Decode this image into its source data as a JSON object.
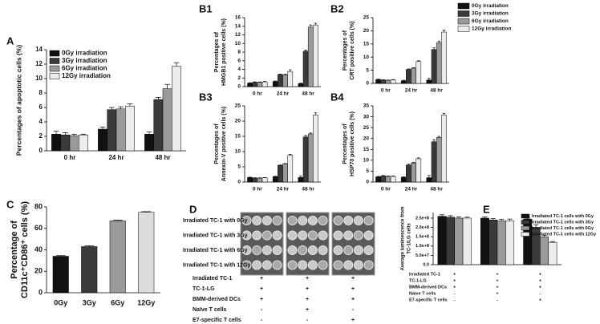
{
  "chart_data": [
    {
      "type": "bar",
      "label": "A",
      "ylabel": "Percentages of apoptotic cells (%)",
      "categories": [
        "0 hr",
        "24 hr",
        "48 hr"
      ],
      "series": [
        {
          "name": "0Gy irradiation",
          "color": "#111111",
          "values": [
            2.3,
            3.0,
            2.3
          ],
          "errors": [
            0.4,
            0.3,
            0.3
          ]
        },
        {
          "name": "3Gy irradiation",
          "color": "#3a3a3a",
          "values": [
            2.2,
            5.7,
            7.1
          ],
          "errors": [
            0.3,
            0.3,
            0.3
          ]
        },
        {
          "name": "6Gy irradiation",
          "color": "#9a9a9a",
          "values": [
            2.1,
            5.8,
            8.6
          ],
          "errors": [
            0.2,
            0.3,
            0.6
          ]
        },
        {
          "name": "12Gy irradiation",
          "color": "#ececec",
          "values": [
            2.2,
            6.2,
            11.7
          ],
          "errors": [
            0.1,
            0.3,
            0.5
          ]
        }
      ],
      "ylim": [
        0,
        14
      ],
      "yticks": [
        0,
        2,
        4,
        6,
        8,
        10,
        12,
        14
      ],
      "legend": "top-left"
    },
    {
      "type": "bar",
      "label": "B1",
      "ylabel": [
        "Percentages of",
        "HMGB1 positive cells (%)"
      ],
      "categories": [
        "0 hr",
        "24 hr",
        "48 hr"
      ],
      "series": [
        {
          "color": "#111111",
          "values": [
            0.8,
            1.2,
            0.7
          ],
          "errors": [
            0.1,
            0.1,
            0.1
          ]
        },
        {
          "color": "#3a3a3a",
          "values": [
            1.0,
            2.8,
            8.2
          ],
          "errors": [
            0.1,
            0.1,
            0.3
          ]
        },
        {
          "color": "#9a9a9a",
          "values": [
            1.0,
            2.7,
            13.8
          ],
          "errors": [
            0.1,
            0.2,
            0.5
          ]
        },
        {
          "color": "#ececec",
          "values": [
            1.1,
            3.5,
            14.3
          ],
          "errors": [
            0.1,
            0.4,
            0.4
          ]
        }
      ],
      "ylim": [
        0,
        16
      ],
      "yticks": [
        0,
        2,
        4,
        6,
        8,
        10,
        12,
        14,
        16
      ]
    },
    {
      "type": "bar",
      "label": "B2",
      "ylabel": [
        "Percentages of",
        "CRT positive cells (%)"
      ],
      "categories": [
        "0 hr",
        "24 hr",
        "48 hr"
      ],
      "series": [
        {
          "name": "0Gy irradiation",
          "color": "#111111",
          "values": [
            1.5,
            1.0,
            1.3
          ],
          "errors": [
            0.1,
            0.2,
            0.6
          ]
        },
        {
          "name": "3Gy irradiation",
          "color": "#3a3a3a",
          "values": [
            1.3,
            5.3,
            12.9
          ],
          "errors": [
            0.1,
            0.2,
            0.6
          ]
        },
        {
          "name": "6Gy irradiation",
          "color": "#9a9a9a",
          "values": [
            1.2,
            5.8,
            15.5
          ],
          "errors": [
            0.1,
            0.2,
            0.6
          ]
        },
        {
          "name": "12Gy irradiation",
          "color": "#ececec",
          "values": [
            1.3,
            8.3,
            19.5
          ],
          "errors": [
            0.1,
            0.3,
            0.8
          ]
        }
      ],
      "ylim": [
        0,
        25
      ],
      "yticks": [
        0,
        5,
        10,
        15,
        20,
        25
      ],
      "legend": "top-right"
    },
    {
      "type": "bar",
      "label": "B3",
      "ylabel": [
        "Percentages of",
        "Annexin-V positive cells (%)"
      ],
      "categories": [
        "0 hr",
        "24 hr",
        "48 hr"
      ],
      "series": [
        {
          "color": "#111111",
          "values": [
            1.5,
            1.8,
            1.5
          ],
          "errors": [
            0.1,
            0.1,
            0.5
          ]
        },
        {
          "color": "#3a3a3a",
          "values": [
            1.3,
            5.5,
            14.8
          ],
          "errors": [
            0.1,
            0.1,
            0.5
          ]
        },
        {
          "color": "#9a9a9a",
          "values": [
            1.3,
            6.0,
            15.8
          ],
          "errors": [
            0.1,
            0.1,
            0.3
          ]
        },
        {
          "color": "#ececec",
          "values": [
            1.4,
            8.8,
            22.0
          ],
          "errors": [
            0.1,
            0.3,
            0.7
          ]
        }
      ],
      "ylim": [
        0,
        25
      ],
      "yticks": [
        0,
        5,
        10,
        15,
        20,
        25
      ]
    },
    {
      "type": "bar",
      "label": "B4",
      "ylabel": [
        "Percentages of",
        "HSP70 positive cells (%)"
      ],
      "categories": [
        "0 hr",
        "24 hr",
        "48 hr"
      ],
      "series": [
        {
          "color": "#111111",
          "values": [
            2.4,
            2.2,
            2.0
          ],
          "errors": [
            0.2,
            0.2,
            1.0
          ]
        },
        {
          "color": "#3a3a3a",
          "values": [
            2.8,
            7.8,
            18.5
          ],
          "errors": [
            0.2,
            0.4,
            1.0
          ]
        },
        {
          "color": "#9a9a9a",
          "values": [
            2.6,
            8.8,
            20.5
          ],
          "errors": [
            0.2,
            0.3,
            0.5
          ]
        },
        {
          "color": "#ececec",
          "values": [
            2.6,
            10.7,
            30.8
          ],
          "errors": [
            0.2,
            0.4,
            0.8
          ]
        }
      ],
      "ylim": [
        0,
        35
      ],
      "yticks": [
        0,
        5,
        10,
        15,
        20,
        25,
        30,
        35
      ]
    },
    {
      "type": "bar",
      "label": "C",
      "ylabel": [
        "Percentage of",
        "CD11c⁺CD86⁺ cells (%)"
      ],
      "categories": [
        "0Gy",
        "3Gy",
        "6Gy",
        "12Gy"
      ],
      "series": [
        {
          "colors": [
            "#111111",
            "#3a3a3a",
            "#9a9a9a",
            "#dcdcdc"
          ],
          "values": [
            34,
            43,
            67,
            75
          ],
          "errors": [
            0.6,
            0.8,
            0.8,
            0.6
          ]
        }
      ],
      "ylim": [
        0,
        80
      ],
      "yticks": [
        0,
        20,
        40,
        60,
        80
      ]
    },
    {
      "type": "bar",
      "label": "E",
      "ylabel": [
        "Average luminescence from",
        "TC-1/LG cells"
      ],
      "categories": [
        null,
        null,
        null
      ],
      "series": [
        {
          "name": "Irradiated TC-1 cells with 0Gy",
          "color": "#111111",
          "values": [
            260000000,
            250000000,
            245000000
          ],
          "errors": [
            8000000,
            6000000,
            5000000
          ]
        },
        {
          "name": "Irradiated TC-1 cells with 3Gy",
          "color": "#3a3a3a",
          "values": [
            255000000,
            240000000,
            200000000
          ],
          "errors": [
            8000000,
            7000000,
            15000000
          ]
        },
        {
          "name": "Irradiated TC-1 cells with 6Gy",
          "color": "#9a9a9a",
          "values": [
            250000000,
            235000000,
            150000000
          ],
          "errors": [
            6000000,
            8000000,
            8000000
          ]
        },
        {
          "name": "Irradiated TC-1 cells with 12Gy",
          "color": "#ececec",
          "values": [
            250000000,
            235000000,
            120000000
          ],
          "errors": [
            5000000,
            10000000,
            4000000
          ]
        }
      ],
      "ylim": [
        0,
        280000000
      ],
      "yticks": [
        {
          "value": 0,
          "label": "0.0"
        },
        {
          "value": 50000000,
          "label": "5.0e+7"
        },
        {
          "value": 100000000,
          "label": "1.0e+8"
        },
        {
          "value": 150000000,
          "label": "1.5e+8"
        },
        {
          "value": 200000000,
          "label": "2.0e+8"
        },
        {
          "value": 250000000,
          "label": "2.5e+8"
        }
      ],
      "legend": "top-right",
      "conditions": [
        {
          "name": "Irradiated TC-1",
          "signs": [
            "+",
            "+",
            "+"
          ]
        },
        {
          "name": "TC-1-LG",
          "signs": [
            "+",
            "+",
            "+"
          ]
        },
        {
          "name": "BMM-derived DCs",
          "signs": [
            "+",
            "+",
            "+"
          ]
        },
        {
          "name": "Naive T cells",
          "signs": [
            "-",
            "+",
            "-"
          ]
        },
        {
          "name": "E7-specific T cells",
          "signs": [
            "-",
            "-",
            "+"
          ]
        }
      ]
    }
  ],
  "panel_d": {
    "label": "D",
    "rows": [
      "Irradiated TC-1 with 0Gy",
      "Irradiated TC-1 with 3Gy",
      "Irradiated TC-1 with 6Gy",
      "Irradiated TC-1 with 12Gy"
    ],
    "conditions": [
      {
        "name": "Irradiated TC-1",
        "signs": [
          "+",
          "+",
          "+"
        ]
      },
      {
        "name": "TC-1-LG",
        "signs": [
          "+",
          "+",
          "+"
        ]
      },
      {
        "name": "BMM-derived DCs",
        "signs": [
          "+",
          "+",
          "+"
        ]
      },
      {
        "name": "Naïve T cells",
        "signs": [
          "-",
          "+",
          "-"
        ]
      },
      {
        "name": "E7-specific T cells",
        "signs": [
          "-",
          "-",
          "+"
        ]
      }
    ]
  }
}
